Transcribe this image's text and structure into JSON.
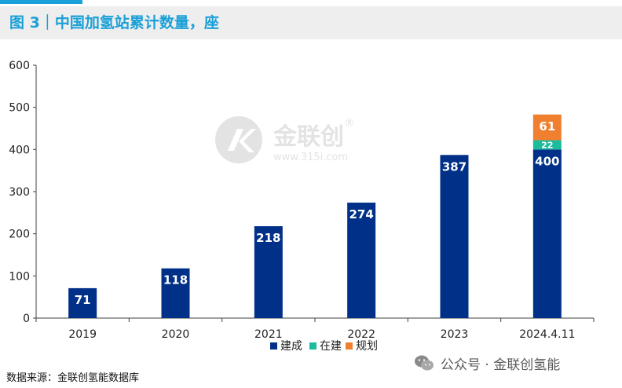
{
  "header": {
    "title": "图 3｜中国加氢站累计数量，座"
  },
  "watermark_logo": {
    "brand": "金联创",
    "registered": "®",
    "url": "www.315i.com"
  },
  "chart_data": {
    "type": "bar",
    "stacked": true,
    "title": "图 3｜中国加氢站累计数量，座",
    "categories": [
      "2019",
      "2020",
      "2021",
      "2022",
      "2023",
      "2024.4.11"
    ],
    "series": [
      {
        "name": "建成",
        "color": "#003087",
        "values": [
          71,
          118,
          218,
          274,
          387,
          400
        ]
      },
      {
        "name": "在建",
        "color": "#1abc9c",
        "values": [
          0,
          0,
          0,
          0,
          0,
          22
        ]
      },
      {
        "name": "规划",
        "color": "#f08030",
        "values": [
          0,
          0,
          0,
          0,
          0,
          61
        ]
      }
    ],
    "ylim": [
      0,
      600
    ],
    "yticks": [
      0,
      100,
      200,
      300,
      400,
      500,
      600
    ],
    "xlabel": "",
    "ylabel": "",
    "legend_position": "bottom-center",
    "grid": false
  },
  "footer": {
    "source": "数据来源：金联创氢能数据库",
    "account": "公众号 · 金联创氢能"
  }
}
